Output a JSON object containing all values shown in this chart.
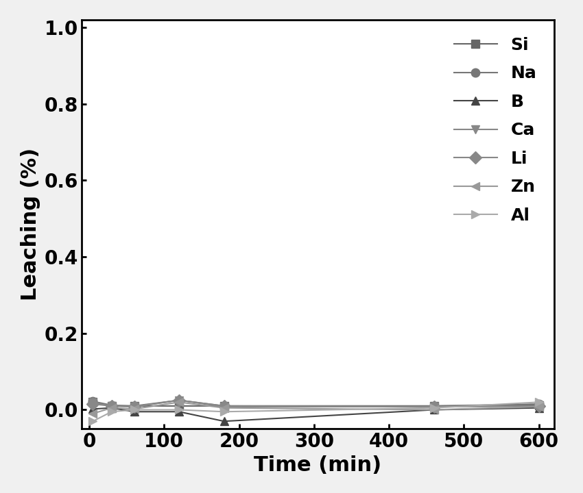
{
  "title": "",
  "xlabel": "Time (min)",
  "ylabel": "Leaching (%)",
  "xlim": [
    -10,
    620
  ],
  "ylim": [
    -0.05,
    1.02
  ],
  "yticks": [
    0.0,
    0.2,
    0.4,
    0.6,
    0.8,
    1.0
  ],
  "xticks": [
    0,
    100,
    200,
    300,
    400,
    500,
    600
  ],
  "series": [
    {
      "label": "Si",
      "color": "#666666",
      "marker": "s",
      "x": [
        5,
        30,
        60,
        120,
        180,
        460,
        600
      ],
      "y": [
        0.02,
        0.01,
        0.01,
        0.01,
        0.01,
        0.01,
        0.012
      ]
    },
    {
      "label": "Na",
      "color": "#777777",
      "marker": "o",
      "x": [
        5,
        30,
        60,
        120,
        180,
        460,
        600
      ],
      "y": [
        0.022,
        0.012,
        0.01,
        0.025,
        0.01,
        0.01,
        0.015
      ]
    },
    {
      "label": "B",
      "color": "#444444",
      "marker": "^",
      "x": [
        5,
        30,
        60,
        120,
        180,
        460,
        600
      ],
      "y": [
        0.002,
        0.005,
        -0.005,
        -0.005,
        -0.03,
        0.0,
        0.005
      ]
    },
    {
      "label": "Ca",
      "color": "#888888",
      "marker": "v",
      "x": [
        5,
        30,
        60,
        120,
        180,
        460,
        600
      ],
      "y": [
        0.018,
        0.01,
        0.008,
        0.025,
        0.008,
        0.008,
        0.01
      ]
    },
    {
      "label": "Li",
      "color": "#888888",
      "marker": "D",
      "x": [
        5,
        30,
        60,
        120,
        180,
        460,
        600
      ],
      "y": [
        0.015,
        0.01,
        0.008,
        0.025,
        0.01,
        0.008,
        0.01
      ]
    },
    {
      "label": "Zn",
      "color": "#999999",
      "marker": "<",
      "x": [
        5,
        30,
        60,
        120,
        180,
        460,
        600
      ],
      "y": [
        -0.01,
        0.005,
        0.002,
        0.02,
        0.005,
        0.0,
        0.008
      ]
    },
    {
      "label": "Al",
      "color": "#aaaaaa",
      "marker": ">",
      "x": [
        5,
        30,
        60,
        120,
        180,
        460,
        600
      ],
      "y": [
        -0.03,
        -0.005,
        0.0,
        0.0,
        -0.005,
        0.005,
        0.02
      ]
    }
  ],
  "legend_fontsize": 18,
  "axis_label_fontsize": 22,
  "tick_fontsize": 20,
  "linewidth": 1.5,
  "markersize": 9,
  "background_color": "#ffffff",
  "figure_facecolor": "#f0f0f0"
}
